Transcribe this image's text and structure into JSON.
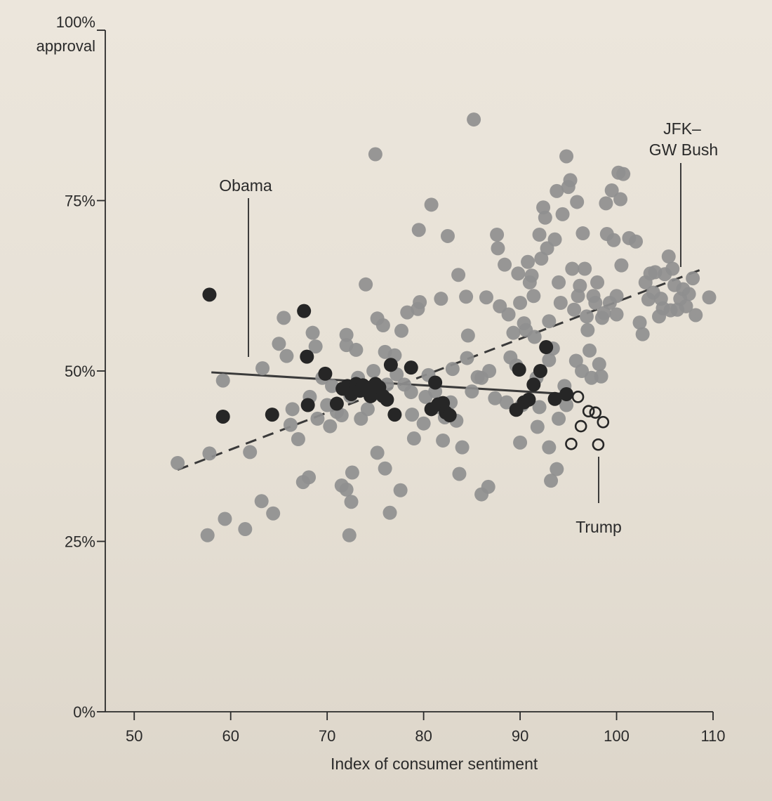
{
  "chart_data": {
    "type": "scatter",
    "title": "",
    "xlabel": "Index of consumer sentiment",
    "ylabel": "approval",
    "xlim": [
      47,
      110
    ],
    "ylim": [
      0,
      100
    ],
    "x_ticks": [
      "50",
      "60",
      "70",
      "80",
      "90",
      "100",
      "110"
    ],
    "y_ticks": [
      {
        "label": "0%",
        "value": 0
      },
      {
        "label": "25%",
        "value": 25
      },
      {
        "label": "50%",
        "value": 50
      },
      {
        "label": "75%",
        "value": 75
      },
      {
        "label": "100%",
        "value": 100
      }
    ],
    "y_top_label": "approval",
    "grid": false,
    "colors": {
      "jfk_gwbush": "#8f8f8f",
      "obama": "#262626",
      "trump": "#262626",
      "trend": "#3a3a3a"
    },
    "annotations": [
      {
        "text": "Obama",
        "series": "Obama"
      },
      {
        "text": "JFK–",
        "series": "JFK–GW Bush"
      },
      {
        "text": "GW Bush",
        "series": "JFK–GW Bush"
      },
      {
        "text": "Trump",
        "series": "Trump"
      }
    ],
    "series": [
      {
        "name": "JFK–GW Bush",
        "style": "filled-gray",
        "points": [
          [
            54.5,
            36.5
          ],
          [
            57.6,
            25.9
          ],
          [
            57.8,
            37.9
          ],
          [
            59.2,
            48.6
          ],
          [
            59.4,
            28.3
          ],
          [
            61.5,
            26.8
          ],
          [
            62.0,
            38.1
          ],
          [
            63.3,
            50.4
          ],
          [
            63.2,
            30.9
          ],
          [
            64.4,
            29.1
          ],
          [
            65.0,
            54.0
          ],
          [
            65.5,
            57.8
          ],
          [
            65.8,
            52.2
          ],
          [
            66.4,
            44.4
          ],
          [
            66.2,
            42.1
          ],
          [
            67.0,
            40.0
          ],
          [
            67.5,
            33.7
          ],
          [
            68.1,
            34.4
          ],
          [
            68.2,
            46.2
          ],
          [
            68.5,
            55.6
          ],
          [
            68.8,
            53.6
          ],
          [
            69.0,
            43.0
          ],
          [
            69.5,
            49.0
          ],
          [
            70.0,
            45.0
          ],
          [
            70.3,
            41.9
          ],
          [
            70.5,
            47.8
          ],
          [
            71.0,
            44.0
          ],
          [
            71.5,
            43.5
          ],
          [
            72.0,
            53.8
          ],
          [
            72.0,
            55.3
          ],
          [
            71.5,
            33.2
          ],
          [
            72.0,
            32.6
          ],
          [
            72.3,
            25.9
          ],
          [
            72.4,
            46.3
          ],
          [
            72.5,
            30.8
          ],
          [
            72.6,
            35.1
          ],
          [
            73.0,
            53.1
          ],
          [
            73.2,
            49.0
          ],
          [
            73.5,
            43.0
          ],
          [
            74.0,
            62.7
          ],
          [
            74.2,
            44.4
          ],
          [
            74.5,
            46.3
          ],
          [
            74.8,
            50.0
          ],
          [
            75.0,
            81.8
          ],
          [
            75.2,
            57.7
          ],
          [
            75.2,
            38.0
          ],
          [
            75.5,
            46.6
          ],
          [
            75.8,
            56.7
          ],
          [
            76.0,
            52.8
          ],
          [
            76.0,
            35.7
          ],
          [
            76.2,
            48.0
          ],
          [
            76.5,
            29.2
          ],
          [
            77.0,
            52.3
          ],
          [
            77.2,
            49.5
          ],
          [
            77.6,
            32.5
          ],
          [
            77.7,
            55.9
          ],
          [
            78.0,
            48.0
          ],
          [
            78.3,
            58.6
          ],
          [
            78.7,
            46.9
          ],
          [
            78.8,
            43.6
          ],
          [
            79.0,
            40.1
          ],
          [
            79.4,
            59.1
          ],
          [
            79.6,
            60.1
          ],
          [
            79.5,
            70.7
          ],
          [
            80.0,
            42.3
          ],
          [
            80.2,
            46.2
          ],
          [
            80.5,
            49.4
          ],
          [
            80.8,
            74.4
          ],
          [
            81.2,
            47.0
          ],
          [
            81.5,
            44.7
          ],
          [
            81.8,
            60.6
          ],
          [
            82.0,
            39.8
          ],
          [
            82.2,
            43.2
          ],
          [
            82.5,
            69.8
          ],
          [
            82.8,
            45.4
          ],
          [
            83.0,
            50.3
          ],
          [
            83.4,
            42.7
          ],
          [
            83.6,
            64.1
          ],
          [
            83.7,
            34.9
          ],
          [
            84.0,
            38.8
          ],
          [
            84.4,
            60.9
          ],
          [
            84.5,
            51.9
          ],
          [
            84.6,
            55.2
          ],
          [
            85.0,
            47.0
          ],
          [
            85.2,
            86.9
          ],
          [
            85.6,
            49.1
          ],
          [
            86.0,
            49.0
          ],
          [
            86.0,
            31.9
          ],
          [
            86.5,
            60.8
          ],
          [
            86.7,
            33.0
          ],
          [
            86.8,
            50.0
          ],
          [
            87.4,
            46.0
          ],
          [
            87.6,
            70.0
          ],
          [
            87.7,
            68.0
          ],
          [
            87.9,
            59.5
          ],
          [
            88.4,
            65.6
          ],
          [
            88.6,
            45.4
          ],
          [
            88.8,
            58.3
          ],
          [
            89.0,
            52.0
          ],
          [
            89.3,
            55.6
          ],
          [
            89.6,
            50.8
          ],
          [
            89.8,
            64.3
          ],
          [
            90.0,
            39.5
          ],
          [
            90.0,
            60.0
          ],
          [
            90.2,
            45.0
          ],
          [
            90.4,
            57.0
          ],
          [
            90.6,
            56.0
          ],
          [
            90.8,
            66.0
          ],
          [
            91.0,
            63.0
          ],
          [
            91.2,
            64.0
          ],
          [
            91.4,
            61.0
          ],
          [
            91.5,
            55.0
          ],
          [
            91.7,
            49.0
          ],
          [
            91.8,
            41.8
          ],
          [
            92.0,
            70.0
          ],
          [
            92.0,
            44.7
          ],
          [
            92.2,
            66.5
          ],
          [
            92.4,
            74.0
          ],
          [
            92.6,
            72.5
          ],
          [
            92.8,
            68.0
          ],
          [
            93.0,
            38.8
          ],
          [
            93.0,
            51.6
          ],
          [
            93.0,
            57.3
          ],
          [
            93.2,
            33.9
          ],
          [
            93.4,
            53.3
          ],
          [
            93.6,
            69.3
          ],
          [
            93.8,
            35.6
          ],
          [
            93.8,
            76.4
          ],
          [
            94.0,
            63.0
          ],
          [
            94.2,
            60.0
          ],
          [
            94.0,
            43.0
          ],
          [
            94.4,
            73.0
          ],
          [
            94.6,
            47.8
          ],
          [
            94.8,
            45.0
          ],
          [
            94.8,
            81.5
          ],
          [
            95.0,
            77.0
          ],
          [
            95.2,
            78.0
          ],
          [
            95.4,
            65.0
          ],
          [
            95.6,
            59.0
          ],
          [
            95.8,
            51.5
          ],
          [
            95.9,
            74.8
          ],
          [
            96.0,
            61.0
          ],
          [
            96.2,
            62.5
          ],
          [
            96.4,
            50.0
          ],
          [
            96.5,
            70.2
          ],
          [
            96.7,
            65.0
          ],
          [
            96.9,
            58.0
          ],
          [
            97.0,
            56.0
          ],
          [
            97.2,
            53.0
          ],
          [
            97.4,
            49.0
          ],
          [
            97.6,
            61.0
          ],
          [
            97.8,
            60.0
          ],
          [
            98.0,
            63.0
          ],
          [
            98.2,
            51.0
          ],
          [
            98.4,
            49.2
          ],
          [
            98.5,
            57.8
          ],
          [
            98.7,
            58.5
          ],
          [
            98.9,
            74.6
          ],
          [
            99.0,
            70.1
          ],
          [
            99.3,
            60.0
          ],
          [
            99.5,
            76.5
          ],
          [
            99.7,
            69.2
          ],
          [
            100.0,
            58.3
          ],
          [
            100.0,
            61.0
          ],
          [
            100.2,
            79.1
          ],
          [
            100.4,
            75.2
          ],
          [
            100.5,
            65.5
          ],
          [
            100.7,
            78.9
          ],
          [
            101.3,
            69.5
          ],
          [
            102.0,
            69.0
          ],
          [
            102.4,
            57.1
          ],
          [
            102.7,
            55.4
          ],
          [
            103.0,
            63.0
          ],
          [
            103.3,
            60.5
          ],
          [
            103.5,
            64.3
          ],
          [
            103.8,
            61.5
          ],
          [
            104.0,
            64.5
          ],
          [
            104.4,
            58.0
          ],
          [
            104.6,
            60.6
          ],
          [
            104.8,
            59.2
          ],
          [
            105.0,
            64.2
          ],
          [
            105.4,
            66.8
          ],
          [
            105.6,
            58.9
          ],
          [
            105.8,
            65.0
          ],
          [
            106.0,
            62.6
          ],
          [
            106.3,
            59.0
          ],
          [
            106.6,
            60.6
          ],
          [
            106.9,
            62.0
          ],
          [
            107.2,
            59.5
          ],
          [
            107.5,
            61.3
          ],
          [
            107.9,
            63.6
          ],
          [
            108.2,
            58.2
          ],
          [
            109.6,
            60.8
          ]
        ]
      },
      {
        "name": "Obama",
        "style": "filled-black",
        "points": [
          [
            57.8,
            61.2
          ],
          [
            59.2,
            43.3
          ],
          [
            64.3,
            43.6
          ],
          [
            67.6,
            58.8
          ],
          [
            67.9,
            52.1
          ],
          [
            68.0,
            45.0
          ],
          [
            69.8,
            49.6
          ],
          [
            71.0,
            45.2
          ],
          [
            71.6,
            47.4
          ],
          [
            72.1,
            47.8
          ],
          [
            72.5,
            46.6
          ],
          [
            73.0,
            48.1
          ],
          [
            73.4,
            47.1
          ],
          [
            73.7,
            47.9
          ],
          [
            74.2,
            47.0
          ],
          [
            74.5,
            46.3
          ],
          [
            75.0,
            48.1
          ],
          [
            75.4,
            47.6
          ],
          [
            75.8,
            46.3
          ],
          [
            76.2,
            45.8
          ],
          [
            76.6,
            50.9
          ],
          [
            77.0,
            43.6
          ],
          [
            78.7,
            50.5
          ],
          [
            80.8,
            44.4
          ],
          [
            81.2,
            48.3
          ],
          [
            81.5,
            45.1
          ],
          [
            82.0,
            45.3
          ],
          [
            82.3,
            43.9
          ],
          [
            82.7,
            43.5
          ],
          [
            89.6,
            44.3
          ],
          [
            89.9,
            50.2
          ],
          [
            90.4,
            45.4
          ],
          [
            90.9,
            45.8
          ],
          [
            91.4,
            48.0
          ],
          [
            92.1,
            50.0
          ],
          [
            92.7,
            53.5
          ],
          [
            93.6,
            45.9
          ],
          [
            94.8,
            46.6
          ]
        ]
      },
      {
        "name": "Trump",
        "style": "open-circle",
        "points": [
          [
            95.3,
            39.3
          ],
          [
            96.0,
            46.2
          ],
          [
            96.3,
            41.9
          ],
          [
            97.1,
            44.1
          ],
          [
            97.8,
            43.9
          ],
          [
            98.1,
            39.2
          ],
          [
            98.6,
            42.5
          ]
        ]
      }
    ],
    "trendlines": [
      {
        "series": "JFK–GW Bush",
        "style": "dashed",
        "from": [
          54.5,
          35.5
        ],
        "to": [
          108.8,
          64.9
        ]
      },
      {
        "series": "Obama",
        "style": "solid",
        "from": [
          58.0,
          49.8
        ],
        "to": [
          95.0,
          46.6
        ]
      }
    ]
  }
}
